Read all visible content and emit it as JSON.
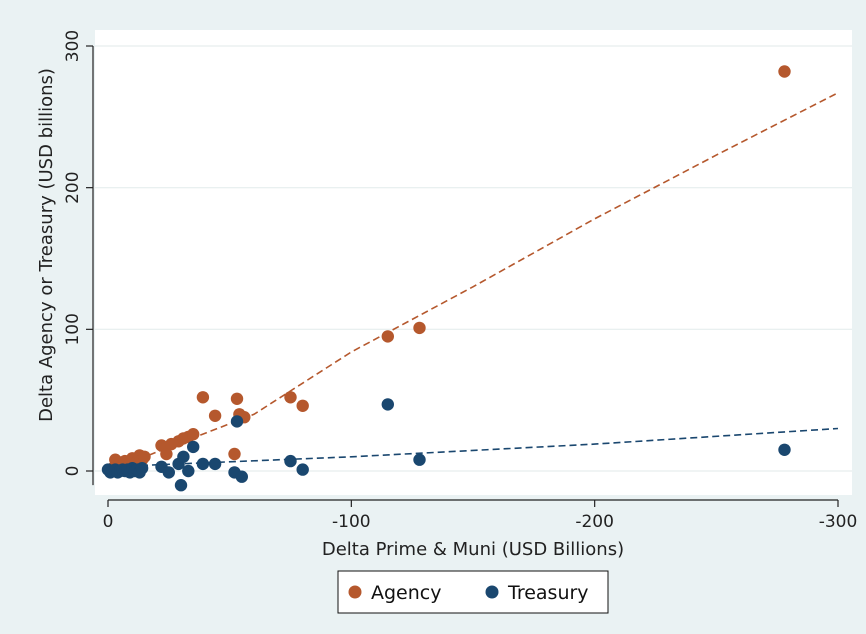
{
  "chart_data": {
    "type": "scatter",
    "xlabel": "Delta Prime & Muni (USD Billions)",
    "ylabel": "Delta Agency or Treasury (USD billions)",
    "xlim": [
      0,
      -300
    ],
    "ylim": [
      -10,
      300
    ],
    "x_ticks": [
      0,
      -100,
      -200,
      -300
    ],
    "x_tick_labels": [
      "0",
      "-100",
      "-200",
      "-300"
    ],
    "y_ticks": [
      0,
      100,
      200,
      300
    ],
    "y_tick_labels": [
      "0",
      "100",
      "200",
      "300"
    ],
    "grid": true,
    "legend_position": "bottom",
    "colors": {
      "agency": "#b5582d",
      "treasury": "#1a476f",
      "plot_bg": "#ffffff",
      "outer_bg": "#eaf2f3",
      "grid": "#e6eeee"
    },
    "series": [
      {
        "name": "Agency",
        "color": "#b5582d",
        "points": [
          [
            -1,
            0
          ],
          [
            -2,
            2
          ],
          [
            -3,
            8
          ],
          [
            -4,
            3
          ],
          [
            -5,
            6
          ],
          [
            -6,
            4
          ],
          [
            -7,
            7
          ],
          [
            -8,
            2
          ],
          [
            -9,
            5
          ],
          [
            -10,
            9
          ],
          [
            -11,
            3
          ],
          [
            -12,
            7
          ],
          [
            -13,
            11
          ],
          [
            -14,
            8
          ],
          [
            -15,
            10
          ],
          [
            -22,
            18
          ],
          [
            -24,
            12
          ],
          [
            -26,
            19
          ],
          [
            -29,
            21
          ],
          [
            -31,
            23
          ],
          [
            -33,
            24
          ],
          [
            -35,
            26
          ],
          [
            -39,
            52
          ],
          [
            -44,
            39
          ],
          [
            -52,
            12
          ],
          [
            -53,
            51
          ],
          [
            -54,
            40
          ],
          [
            -56,
            38
          ],
          [
            -75,
            52
          ],
          [
            -80,
            46
          ],
          [
            -115,
            95
          ],
          [
            -128,
            101
          ],
          [
            -278,
            282
          ]
        ]
      },
      {
        "name": "Treasury",
        "color": "#1a476f",
        "points": [
          [
            0,
            1
          ],
          [
            -1,
            -1
          ],
          [
            -2,
            0
          ],
          [
            -3,
            1
          ],
          [
            -4,
            -1
          ],
          [
            -5,
            0
          ],
          [
            -6,
            1
          ],
          [
            -7,
            0
          ],
          [
            -8,
            1
          ],
          [
            -9,
            -1
          ],
          [
            -10,
            2
          ],
          [
            -11,
            0
          ],
          [
            -12,
            1
          ],
          [
            -13,
            -1
          ],
          [
            -14,
            2
          ],
          [
            -22,
            3
          ],
          [
            -25,
            -1
          ],
          [
            -29,
            5
          ],
          [
            -30,
            -10
          ],
          [
            -31,
            10
          ],
          [
            -33,
            0
          ],
          [
            -35,
            17
          ],
          [
            -39,
            5
          ],
          [
            -44,
            5
          ],
          [
            -52,
            -1
          ],
          [
            -53,
            35
          ],
          [
            -55,
            -4
          ],
          [
            -75,
            7
          ],
          [
            -80,
            1
          ],
          [
            -115,
            47
          ],
          [
            -128,
            8
          ],
          [
            -278,
            15
          ]
        ]
      }
    ],
    "fit_lines": [
      {
        "series": "Agency",
        "color": "#b5582d",
        "points": [
          [
            0,
            0
          ],
          [
            -60,
            40
          ],
          [
            -100,
            84
          ],
          [
            -150,
            130
          ],
          [
            -200,
            178
          ],
          [
            -250,
            223
          ],
          [
            -300,
            267
          ]
        ]
      },
      {
        "series": "Treasury",
        "color": "#1a476f",
        "points": [
          [
            0,
            3
          ],
          [
            -100,
            10
          ],
          [
            -200,
            19
          ],
          [
            -300,
            30
          ]
        ]
      }
    ]
  }
}
